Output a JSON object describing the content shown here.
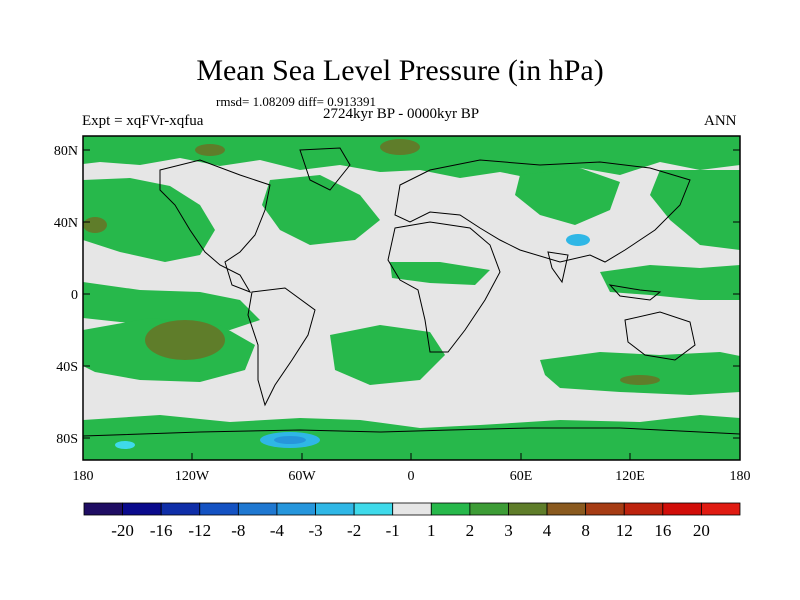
{
  "title": "Mean Sea Level Pressure (in hPa)",
  "stats_line": "rmsd= 1.08209 diff= 0.913391",
  "period": "2724kyr BP - 0000kyr BP",
  "experiment": "Expt = xqFVr-xqfua",
  "season": "ANN",
  "lat_labels": [
    "80N",
    "40N",
    "0",
    "40S",
    "80S"
  ],
  "lon_labels": [
    "180",
    "120W",
    "60W",
    "0",
    "60E",
    "120E",
    "180"
  ],
  "colorbar": {
    "labels": [
      "-20",
      "-16",
      "-12",
      "-8",
      "-4",
      "-3",
      "-2",
      "-1",
      "1",
      "2",
      "3",
      "4",
      "8",
      "12",
      "16",
      "20"
    ],
    "colors": [
      "#1f0d63",
      "#0a0a8c",
      "#0f2ea8",
      "#1452c2",
      "#1f78d1",
      "#2696dc",
      "#2fb7e6",
      "#3fdaea",
      "#e6e6e6",
      "#27b84b",
      "#3d9c36",
      "#5f7d2a",
      "#8a5a1f",
      "#a63c14",
      "#bd230e",
      "#d10d09",
      "#e01b12"
    ]
  },
  "colors": {
    "land_outline": "#000000",
    "near_zero": "#e6e6e6",
    "positive_1_2": "#27b84b",
    "positive_3_4": "#5f7d2a",
    "negative_2_3": "#2fb7e6"
  }
}
